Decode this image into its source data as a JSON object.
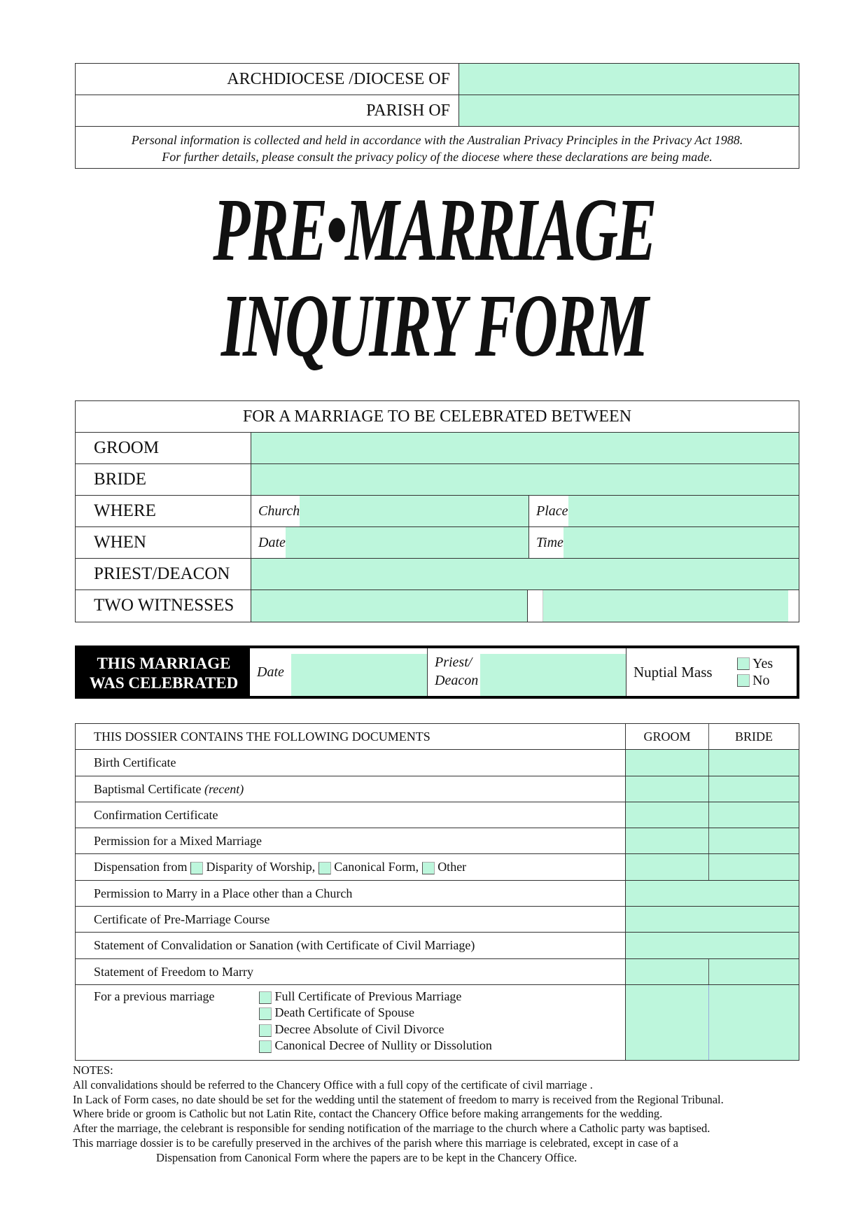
{
  "header": {
    "archdiocese_label": "ARCHDIOCESE /DIOCESE OF",
    "parish_label": "PARISH OF",
    "privacy_line1": "Personal information is collected and held in accordance with the Australian Privacy Principles in the Privacy Act 1988.",
    "privacy_line2": "For further details, please consult the privacy policy of the diocese where these declarations are being made."
  },
  "title": {
    "line1": "PRE•MARRIAGE",
    "line2": "INQUIRY FORM"
  },
  "marriage": {
    "heading": "FOR A MARRIAGE TO BE CELEBRATED BETWEEN",
    "groom": "GROOM",
    "bride": "BRIDE",
    "where": "WHERE",
    "church": "Church",
    "place": "Place",
    "when": "WHEN",
    "date": "Date",
    "time": "Time",
    "priest": "PRIEST/DEACON",
    "witnesses": "TWO WITNESSES"
  },
  "celebrated": {
    "line1": "THIS MARRIAGE",
    "line2": "WAS CELEBRATED",
    "date": "Date",
    "priest1": "Priest/",
    "priest2": "Deacon",
    "nuptial": "Nuptial Mass",
    "yes": "Yes",
    "no": "No"
  },
  "documents": {
    "header": "THIS DOSSIER CONTAINS THE FOLLOWING DOCUMENTS",
    "groom": "GROOM",
    "bride": "BRIDE",
    "birth": "Birth Certificate",
    "baptismal": "Baptismal Certificate",
    "baptismal_note": "(recent)",
    "confirmation": "Confirmation Certificate",
    "mixed": "Permission for a Mixed Marriage",
    "dispensation": "Dispensation from",
    "disparity": "Disparity of Worship,",
    "canonical": "Canonical Form,",
    "other": "Other",
    "place": "Permission to Marry in a Place other than a Church",
    "course": "Certificate of Pre-Marriage Course",
    "convalidation": "Statement of Convalidation or Sanation (with Certificate of Civil Marriage)",
    "freedom": "Statement of Freedom to Marry",
    "previous": "For a previous marriage",
    "previous_items": [
      "Full Certificate of Previous Marriage",
      "Death Certificate of  Spouse",
      "Decree Absolute of Civil Divorce",
      "Canonical Decree of Nullity or Dissolution"
    ]
  },
  "notes": {
    "title": "NOTES:",
    "lines": [
      "All convalidations should be referred to the Chancery Office with a full copy of the certificate of civil marriage .",
      "In Lack of Form cases, no date should be set for the wedding until the statement of freedom to marry is received from the Regional Tribunal.",
      "Where bride or groom is Catholic but not Latin Rite, contact the Chancery Office before making arrangements for the wedding.",
      "After the marriage, the celebrant is responsible for sending notification of the marriage to the church where a Catholic party was baptised.",
      "This marriage dossier is to be carefully preserved in the archives of the parish where this marriage is celebrated, except in case of a",
      "Dispensation from Canonical Form where the papers are to be kept in the Chancery Office."
    ]
  },
  "colors": {
    "field": "#bdf6dc",
    "text": "#111111",
    "banner": "#000000"
  }
}
